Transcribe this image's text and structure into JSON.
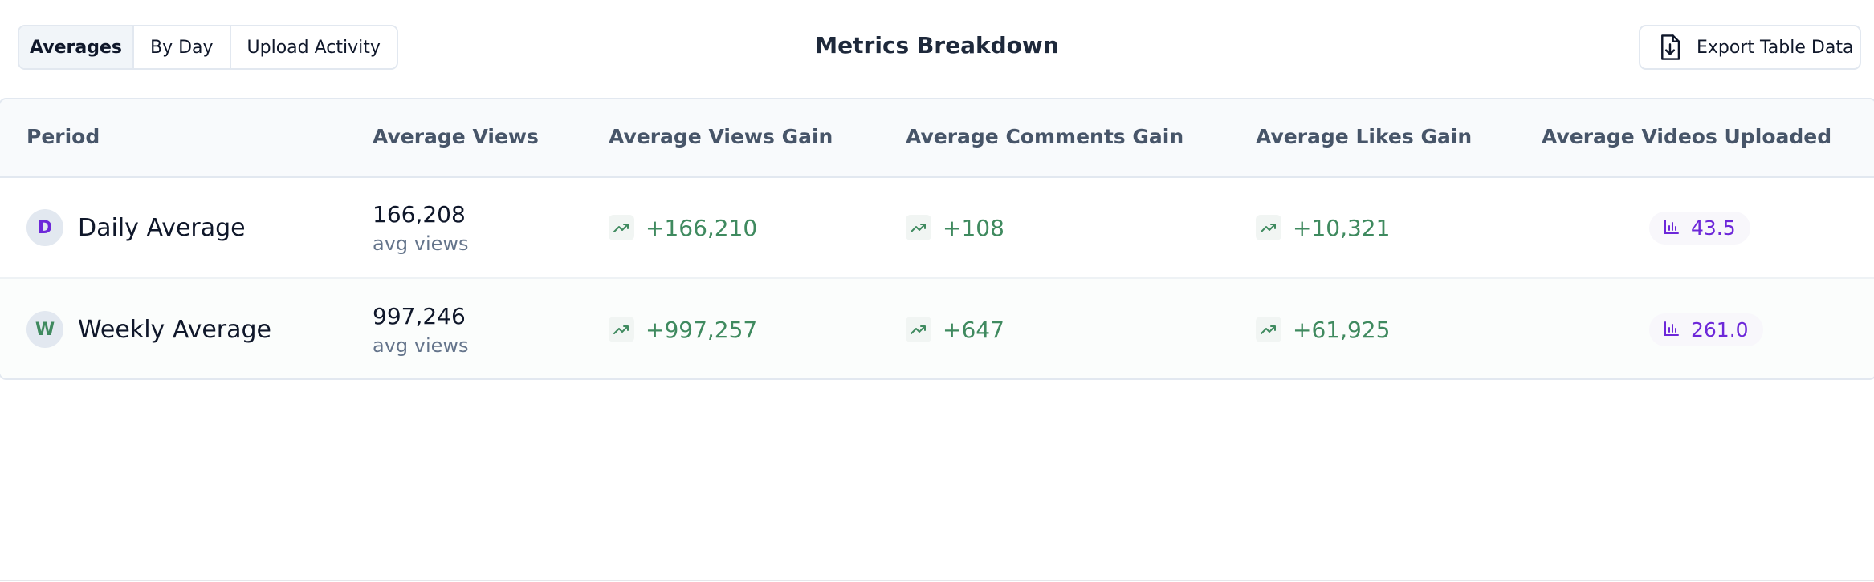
{
  "tabs": [
    "Averages",
    "By Day",
    "Upload Activity"
  ],
  "title": "Metrics Breakdown",
  "export_button": "Export Table Data",
  "table": {
    "columns": [
      "Period",
      "Average Views",
      "Average Views Gain",
      "Average Comments Gain",
      "Average Likes Gain",
      "Average Videos Uploaded"
    ],
    "rows": [
      {
        "avatar": "D",
        "period": "Daily Average",
        "views": "166,208",
        "views_note": "avg views",
        "views_gain": "+166,210",
        "comments_gain": "+108",
        "likes_gain": "+10,321",
        "videos": "43.5"
      },
      {
        "avatar": "W",
        "period": "Weekly Average",
        "views": "997,246",
        "views_note": "avg views",
        "views_gain": "+997,257",
        "comments_gain": "+647",
        "likes_gain": "+61,925",
        "videos": "261.0"
      }
    ]
  }
}
